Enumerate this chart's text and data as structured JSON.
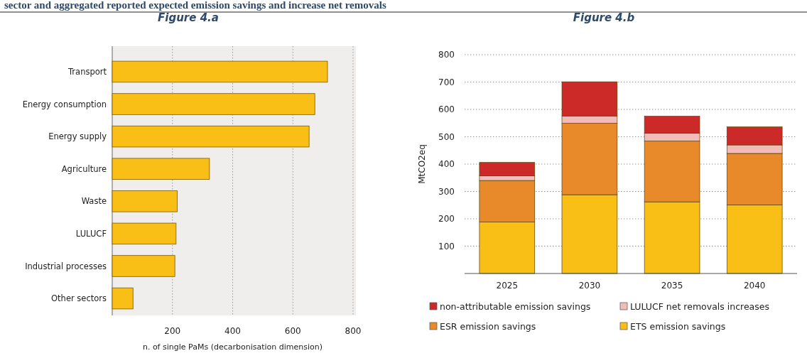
{
  "chart_data": [
    {
      "type": "bar",
      "orientation": "horizontal",
      "title": "Figure 4.a",
      "annotations": [
        "sector and aggregated reported expected emission savings and increase net removals"
      ],
      "xlabel": "n. of single PaMs (decarbonisation dimension)",
      "categories": [
        "Transport",
        "Energy consumption",
        "Energy supply",
        "Agriculture",
        "Waste",
        "LULUCF",
        "Industrial processes",
        "Other sectors"
      ],
      "values": [
        715,
        673,
        654,
        323,
        216,
        212,
        208,
        69
      ],
      "color": "#f9bf16",
      "xlim": [
        0,
        800
      ],
      "xticks": [
        200,
        400,
        600,
        800
      ],
      "grid": "x"
    },
    {
      "type": "bar",
      "stacked": true,
      "title": "Figure 4.b",
      "ylabel": "MtCO2eq",
      "categories": [
        "2025",
        "2030",
        "2035",
        "2040"
      ],
      "series": [
        {
          "name": "ETS emission savings",
          "color": "#f9bf16",
          "values": [
            188,
            288,
            262,
            251
          ]
        },
        {
          "name": "ESR emission savings",
          "color": "#e8892a",
          "values": [
            152,
            261,
            222,
            188
          ]
        },
        {
          "name": "LULUCF net removals increases",
          "color": "#f2bcb8",
          "values": [
            17,
            27,
            29,
            31
          ]
        },
        {
          "name": "non-attributable emission savings",
          "color": "#cc2a28",
          "values": [
            49,
            125,
            62,
            66
          ]
        }
      ],
      "ylim": [
        0,
        800
      ],
      "yticks": [
        100,
        200,
        300,
        400,
        500,
        600,
        700,
        800
      ],
      "grid": "y",
      "legend": "bottom"
    }
  ]
}
